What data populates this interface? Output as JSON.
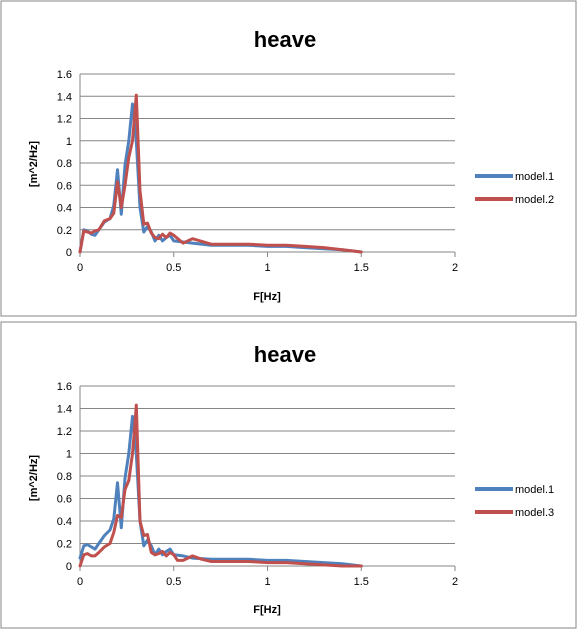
{
  "colors": {
    "model1": "#4F81BD",
    "model2": "#C0504D",
    "model3": "#C0504D",
    "grid": "#868686",
    "axis": "#868686",
    "border": "#868686"
  },
  "chart_data": [
    {
      "type": "line",
      "title": "heave",
      "xlabel": "F[Hz]",
      "ylabel": "[m^2/Hz]",
      "xlim": [
        0,
        2
      ],
      "ylim": [
        0,
        1.6
      ],
      "xticks": [
        "0",
        "0.5",
        "1",
        "1.5",
        "2"
      ],
      "yticks": [
        "0",
        "0.2",
        "0.4",
        "0.6",
        "0.8",
        "1",
        "1.2",
        "1.4",
        "1.6"
      ],
      "grid": "horizontal",
      "legend": "right",
      "series": [
        {
          "name": "model.1",
          "color": "#4F81BD",
          "x": [
            0,
            0.02,
            0.04,
            0.06,
            0.08,
            0.1,
            0.13,
            0.16,
            0.18,
            0.2,
            0.22,
            0.24,
            0.26,
            0.28,
            0.3,
            0.32,
            0.34,
            0.36,
            0.38,
            0.4,
            0.42,
            0.44,
            0.46,
            0.48,
            0.5,
            0.55,
            0.6,
            0.7,
            0.8,
            0.9,
            1.0,
            1.1,
            1.2,
            1.3,
            1.4,
            1.5
          ],
          "y": [
            0,
            0.2,
            0.19,
            0.16,
            0.15,
            0.2,
            0.27,
            0.3,
            0.42,
            0.74,
            0.34,
            0.78,
            1.0,
            1.33,
            1.0,
            0.4,
            0.18,
            0.23,
            0.18,
            0.1,
            0.15,
            0.1,
            0.13,
            0.15,
            0.1,
            0.09,
            0.08,
            0.06,
            0.06,
            0.06,
            0.05,
            0.05,
            0.04,
            0.03,
            0.02,
            0.0
          ]
        },
        {
          "name": "model.2",
          "color": "#C0504D",
          "x": [
            0,
            0.02,
            0.04,
            0.06,
            0.08,
            0.1,
            0.13,
            0.16,
            0.18,
            0.2,
            0.22,
            0.24,
            0.26,
            0.28,
            0.29,
            0.3,
            0.32,
            0.34,
            0.36,
            0.38,
            0.4,
            0.42,
            0.44,
            0.46,
            0.48,
            0.5,
            0.55,
            0.6,
            0.7,
            0.8,
            0.9,
            1.0,
            1.1,
            1.2,
            1.3,
            1.4,
            1.5
          ],
          "y": [
            0,
            0.19,
            0.18,
            0.17,
            0.19,
            0.2,
            0.28,
            0.3,
            0.35,
            0.63,
            0.4,
            0.6,
            0.85,
            1.0,
            1.2,
            1.41,
            0.55,
            0.25,
            0.26,
            0.17,
            0.13,
            0.12,
            0.16,
            0.13,
            0.17,
            0.15,
            0.08,
            0.12,
            0.07,
            0.07,
            0.07,
            0.06,
            0.06,
            0.05,
            0.04,
            0.02,
            0.0
          ]
        }
      ]
    },
    {
      "type": "line",
      "title": "heave",
      "xlabel": "F[Hz]",
      "ylabel": "[m^2/Hz]",
      "xlim": [
        0,
        2
      ],
      "ylim": [
        0,
        1.6
      ],
      "xticks": [
        "0",
        "0.5",
        "1",
        "1.5",
        "2"
      ],
      "yticks": [
        "0",
        "0.2",
        "0.4",
        "0.6",
        "0.8",
        "1",
        "1.2",
        "1.4",
        "1.6"
      ],
      "grid": "horizontal",
      "legend": "right",
      "series": [
        {
          "name": "model.1",
          "color": "#4F81BD",
          "x": [
            0,
            0.02,
            0.04,
            0.06,
            0.08,
            0.1,
            0.13,
            0.16,
            0.18,
            0.2,
            0.22,
            0.24,
            0.26,
            0.28,
            0.3,
            0.32,
            0.34,
            0.36,
            0.38,
            0.4,
            0.42,
            0.44,
            0.46,
            0.48,
            0.5,
            0.55,
            0.6,
            0.7,
            0.8,
            0.9,
            1.0,
            1.1,
            1.2,
            1.3,
            1.4,
            1.5
          ],
          "y": [
            0.07,
            0.18,
            0.19,
            0.17,
            0.15,
            0.2,
            0.27,
            0.32,
            0.42,
            0.74,
            0.34,
            0.78,
            1.0,
            1.33,
            1.0,
            0.4,
            0.18,
            0.23,
            0.18,
            0.1,
            0.15,
            0.1,
            0.13,
            0.15,
            0.1,
            0.09,
            0.07,
            0.06,
            0.06,
            0.06,
            0.05,
            0.05,
            0.04,
            0.03,
            0.02,
            0.0
          ]
        },
        {
          "name": "model.3",
          "color": "#C0504D",
          "x": [
            0,
            0.02,
            0.04,
            0.06,
            0.08,
            0.1,
            0.13,
            0.16,
            0.18,
            0.2,
            0.22,
            0.24,
            0.26,
            0.28,
            0.29,
            0.3,
            0.32,
            0.34,
            0.36,
            0.38,
            0.4,
            0.42,
            0.44,
            0.46,
            0.48,
            0.5,
            0.52,
            0.55,
            0.6,
            0.65,
            0.7,
            0.8,
            0.9,
            1.0,
            1.1,
            1.2,
            1.3,
            1.4,
            1.5
          ],
          "y": [
            0,
            0.1,
            0.11,
            0.09,
            0.09,
            0.12,
            0.17,
            0.2,
            0.3,
            0.45,
            0.43,
            0.68,
            0.76,
            1.0,
            1.2,
            1.43,
            0.4,
            0.27,
            0.28,
            0.12,
            0.1,
            0.11,
            0.13,
            0.09,
            0.12,
            0.1,
            0.05,
            0.05,
            0.09,
            0.06,
            0.04,
            0.04,
            0.04,
            0.03,
            0.03,
            0.02,
            0.01,
            0.0,
            0.0
          ]
        }
      ]
    }
  ]
}
